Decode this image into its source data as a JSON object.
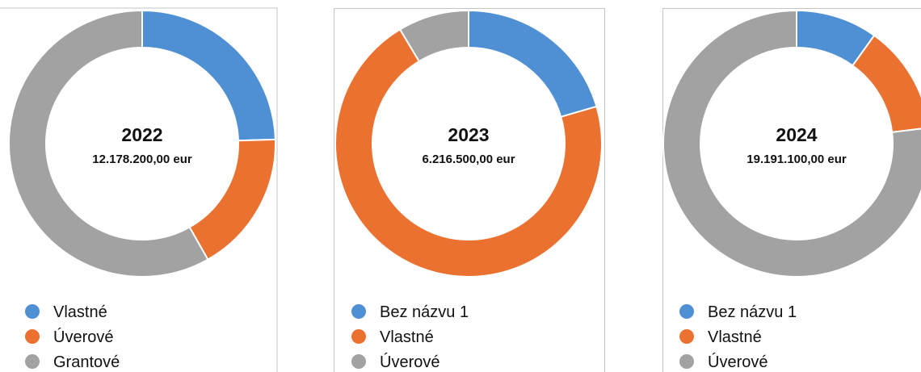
{
  "chart_data": [
    {
      "type": "pie",
      "donut": true,
      "title": "2022",
      "subtitle": "12.178.200,00 eur",
      "categories": [
        "Vlastné",
        "Úverové",
        "Grantové"
      ],
      "values": [
        24.5,
        17.3,
        58.2
      ],
      "colors": [
        "#4f8fd4",
        "#eb7130",
        "#a2a2a2"
      ]
    },
    {
      "type": "pie",
      "donut": true,
      "title": "2023",
      "subtitle": "6.216.500,00 eur",
      "categories": [
        "Bez názvu 1",
        "Vlastné",
        "Úverové"
      ],
      "values": [
        20.5,
        70.9,
        8.6
      ],
      "colors": [
        "#4f8fd4",
        "#eb7130",
        "#a2a2a2"
      ]
    },
    {
      "type": "pie",
      "donut": true,
      "title": "2024",
      "subtitle": "19.191.100,00 eur",
      "categories": [
        "Bez názvu 1",
        "Vlastné",
        "Úverové"
      ],
      "values": [
        9.9,
        13.2,
        76.9
      ],
      "colors": [
        "#4f8fd4",
        "#eb7130",
        "#a2a2a2"
      ]
    }
  ]
}
